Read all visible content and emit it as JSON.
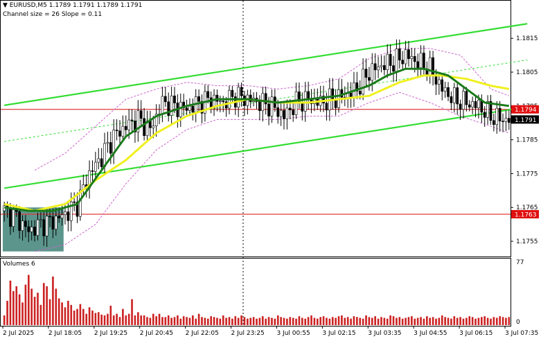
{
  "header": {
    "symbol_line": "EURUSD,M5  1.1789 1.1791 1.1789 1.1791",
    "channel_line": "Channel size = 26 Slope = 0.11",
    "volumes_label": "Volumes 6"
  },
  "colors": {
    "candle": "#000000",
    "ma_fast": "#1a7a1a",
    "ma_slow": "#f0f020",
    "channel": "#33dd33",
    "envelope": "#cc66cc",
    "level_line": "#e03a3a",
    "level_badge": "#e01010",
    "price_badge": "#000000",
    "shaded_zone": "#4a8a80",
    "volume_bar": "#cc2222"
  },
  "chart_data": {
    "type": "candlestick",
    "symbol": "EURUSD",
    "timeframe": "M5",
    "ohlc_header": {
      "open": 1.1789,
      "high": 1.1791,
      "low": 1.1789,
      "close": 1.1791
    },
    "channel": {
      "size": 26,
      "slope": 0.11
    },
    "ylim": [
      1.17505,
      1.18255
    ],
    "y_ticks": [
      "1.1815",
      "1.1805",
      "1.1795",
      "1.1785",
      "1.1775",
      "1.1765",
      "1.1755"
    ],
    "x_ticks": [
      "2 Jul 2025",
      "2 Jul 18:05",
      "2 Jul 19:25",
      "2 Jul 20:45",
      "2 Jul 22:05",
      "2 Jul 23:25",
      "3 Jul 00:55",
      "3 Jul 02:15",
      "3 Jul 03:35",
      "3 Jul 04:55",
      "3 Jul 06:15",
      "3 Jul 07:35"
    ],
    "price_labels": [
      {
        "value": 1.1794,
        "text": "1.1794",
        "kind": "level"
      },
      {
        "value": 1.1791,
        "text": "1.1791",
        "kind": "current"
      },
      {
        "value": 1.1763,
        "text": "1.1763",
        "kind": "level"
      }
    ],
    "close_path": [
      [
        0,
        1.1764
      ],
      [
        4,
        1.1762
      ],
      [
        8,
        1.1758
      ],
      [
        12,
        1.176
      ],
      [
        16,
        1.1761
      ],
      [
        20,
        1.1763
      ],
      [
        24,
        1.1766
      ],
      [
        28,
        1.1775
      ],
      [
        32,
        1.178
      ],
      [
        36,
        1.1786
      ],
      [
        40,
        1.1789
      ],
      [
        44,
        1.1791
      ],
      [
        48,
        1.1788
      ],
      [
        52,
        1.1796
      ],
      [
        56,
        1.1795
      ],
      [
        60,
        1.1794
      ],
      [
        64,
        1.1796
      ],
      [
        68,
        1.1797
      ],
      [
        72,
        1.1796
      ],
      [
        76,
        1.1798
      ],
      [
        80,
        1.1797
      ],
      [
        84,
        1.1796
      ],
      [
        88,
        1.1795
      ],
      [
        92,
        1.1792
      ],
      [
        96,
        1.1796
      ],
      [
        100,
        1.1797
      ],
      [
        104,
        1.1796
      ],
      [
        108,
        1.1797
      ],
      [
        112,
        1.1798
      ],
      [
        116,
        1.18
      ],
      [
        120,
        1.1805
      ],
      [
        124,
        1.1807
      ],
      [
        128,
        1.1808
      ],
      [
        132,
        1.181
      ],
      [
        136,
        1.1808
      ],
      [
        140,
        1.1806
      ],
      [
        144,
        1.18
      ],
      [
        148,
        1.1797
      ],
      [
        152,
        1.1796
      ],
      [
        156,
        1.1795
      ],
      [
        160,
        1.1792
      ],
      [
        164,
        1.1791
      ],
      [
        166,
        1.1791
      ]
    ],
    "ma_fast_path": [
      [
        0,
        1.1765
      ],
      [
        8,
        1.1764
      ],
      [
        16,
        1.1764
      ],
      [
        24,
        1.1766
      ],
      [
        32,
        1.1776
      ],
      [
        40,
        1.1786
      ],
      [
        50,
        1.1792
      ],
      [
        60,
        1.1795
      ],
      [
        70,
        1.1797
      ],
      [
        80,
        1.1797
      ],
      [
        90,
        1.1796
      ],
      [
        100,
        1.1797
      ],
      [
        110,
        1.1798
      ],
      [
        120,
        1.1801
      ],
      [
        126,
        1.1804
      ],
      [
        132,
        1.1806
      ],
      [
        138,
        1.1806
      ],
      [
        146,
        1.1804
      ],
      [
        152,
        1.18
      ],
      [
        158,
        1.1796
      ],
      [
        166,
        1.1795
      ]
    ],
    "ma_slow_path": [
      [
        0,
        1.1766
      ],
      [
        10,
        1.1764
      ],
      [
        20,
        1.1766
      ],
      [
        30,
        1.1773
      ],
      [
        40,
        1.1779
      ],
      [
        50,
        1.1787
      ],
      [
        60,
        1.1792
      ],
      [
        70,
        1.1795
      ],
      [
        80,
        1.1797
      ],
      [
        90,
        1.1796
      ],
      [
        100,
        1.1796
      ],
      [
        110,
        1.1797
      ],
      [
        120,
        1.1798
      ],
      [
        130,
        1.1802
      ],
      [
        138,
        1.1804
      ],
      [
        144,
        1.1804
      ],
      [
        152,
        1.1803
      ],
      [
        160,
        1.1801
      ],
      [
        166,
        1.18
      ]
    ],
    "channel_lines": [
      {
        "role": "upper",
        "from": [
          0,
          1.17952
        ],
        "to": [
          172,
          1.18193
        ]
      },
      {
        "role": "middle",
        "from": [
          0,
          1.17845
        ],
        "to": [
          172,
          1.18086
        ]
      },
      {
        "role": "lower",
        "from": [
          0,
          1.17707
        ],
        "to": [
          172,
          1.17947
        ]
      }
    ],
    "envelope_upper": [
      [
        10,
        1.1776
      ],
      [
        20,
        1.1781
      ],
      [
        30,
        1.1789
      ],
      [
        40,
        1.1797
      ],
      [
        50,
        1.18
      ],
      [
        60,
        1.1802
      ],
      [
        70,
        1.1801
      ],
      [
        80,
        1.1801
      ],
      [
        90,
        1.18
      ],
      [
        100,
        1.1801
      ],
      [
        110,
        1.1803
      ],
      [
        120,
        1.1809
      ],
      [
        130,
        1.1812
      ],
      [
        140,
        1.1812
      ],
      [
        150,
        1.181
      ],
      [
        160,
        1.18
      ],
      [
        166,
        1.1798
      ]
    ],
    "envelope_lower": [
      [
        10,
        1.1752
      ],
      [
        20,
        1.1754
      ],
      [
        30,
        1.176
      ],
      [
        40,
        1.1772
      ],
      [
        50,
        1.1782
      ],
      [
        60,
        1.1788
      ],
      [
        70,
        1.1791
      ],
      [
        80,
        1.1791
      ],
      [
        90,
        1.1791
      ],
      [
        100,
        1.1792
      ],
      [
        110,
        1.1792
      ],
      [
        120,
        1.1796
      ],
      [
        130,
        1.1799
      ],
      [
        140,
        1.1796
      ],
      [
        150,
        1.1792
      ],
      [
        160,
        1.1789
      ],
      [
        166,
        1.1787
      ]
    ],
    "shaded_zone": {
      "from_bar": 0,
      "to_bar": 20,
      "top": 1.1765,
      "bottom": 1.1752
    },
    "volumes": {
      "label": "Volumes 6",
      "ylim": [
        0,
        77
      ],
      "y_ticks": [
        "77",
        "0"
      ],
      "values": [
        12,
        30,
        55,
        42,
        48,
        38,
        28,
        50,
        62,
        45,
        35,
        40,
        25,
        52,
        48,
        32,
        60,
        45,
        33,
        28,
        22,
        30,
        25,
        18,
        20,
        26,
        20,
        14,
        22,
        18,
        15,
        16,
        13,
        12,
        14,
        24,
        12,
        14,
        10,
        20,
        12,
        14,
        32,
        12,
        16,
        12,
        12,
        10,
        9,
        14,
        11,
        14,
        10,
        10,
        12,
        9,
        10,
        12,
        8,
        11,
        10,
        9,
        12,
        8,
        14,
        10,
        9,
        8,
        11,
        10,
        9,
        8,
        12,
        9,
        10,
        8,
        11,
        9,
        12,
        10,
        8,
        9,
        10,
        8,
        9,
        11,
        8,
        10,
        9,
        8,
        12,
        10,
        9,
        8,
        10,
        9,
        8,
        11,
        9,
        8,
        10,
        12,
        9,
        8,
        10,
        11,
        9,
        8,
        10,
        9,
        11,
        12,
        9,
        10,
        8,
        11,
        10,
        9,
        8,
        12,
        10,
        9,
        11,
        8,
        10,
        9,
        8,
        12,
        11,
        9,
        10,
        8,
        9,
        10,
        11,
        8,
        9,
        10,
        8,
        11,
        9,
        10,
        8,
        9,
        12,
        10,
        9,
        8,
        11,
        9,
        10,
        8,
        9,
        11,
        10,
        8,
        9,
        10,
        11,
        9,
        8,
        10,
        9,
        11,
        10,
        9,
        10
      ]
    }
  }
}
